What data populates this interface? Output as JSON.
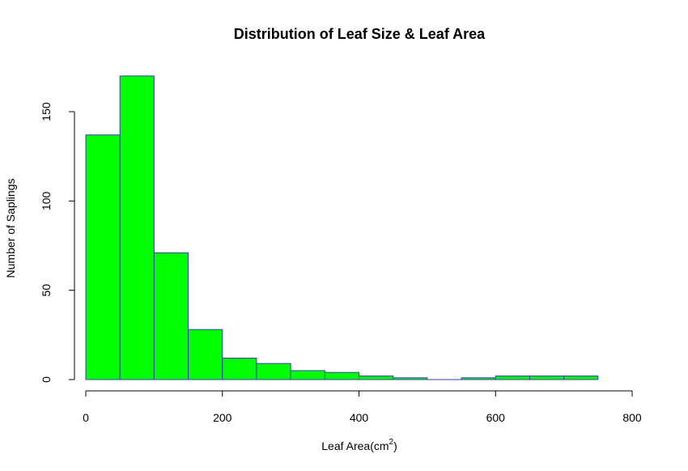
{
  "chart_data": {
    "type": "bar",
    "title": "Distribution of Leaf Size & Leaf Area",
    "xlabel_main": "Leaf Area(cm",
    "xlabel_sup": "2",
    "xlabel_close": ")",
    "ylabel": "Number of Saplings",
    "bin_edges": [
      0,
      50,
      100,
      150,
      200,
      250,
      300,
      350,
      400,
      450,
      500,
      550,
      600,
      650,
      700,
      750
    ],
    "values": [
      137,
      170,
      71,
      28,
      12,
      9,
      5,
      4,
      2,
      1,
      0,
      1,
      2,
      2,
      2
    ],
    "xlim": [
      0,
      800
    ],
    "ylim": [
      0,
      170
    ],
    "x_ticks": [
      "0",
      "200",
      "400",
      "600",
      "800"
    ],
    "y_ticks": [
      "0",
      "50",
      "100",
      "150"
    ],
    "bar_fill": "#00ff00",
    "bar_stroke": "#3c3cb4",
    "grid": false,
    "legend": "none"
  }
}
